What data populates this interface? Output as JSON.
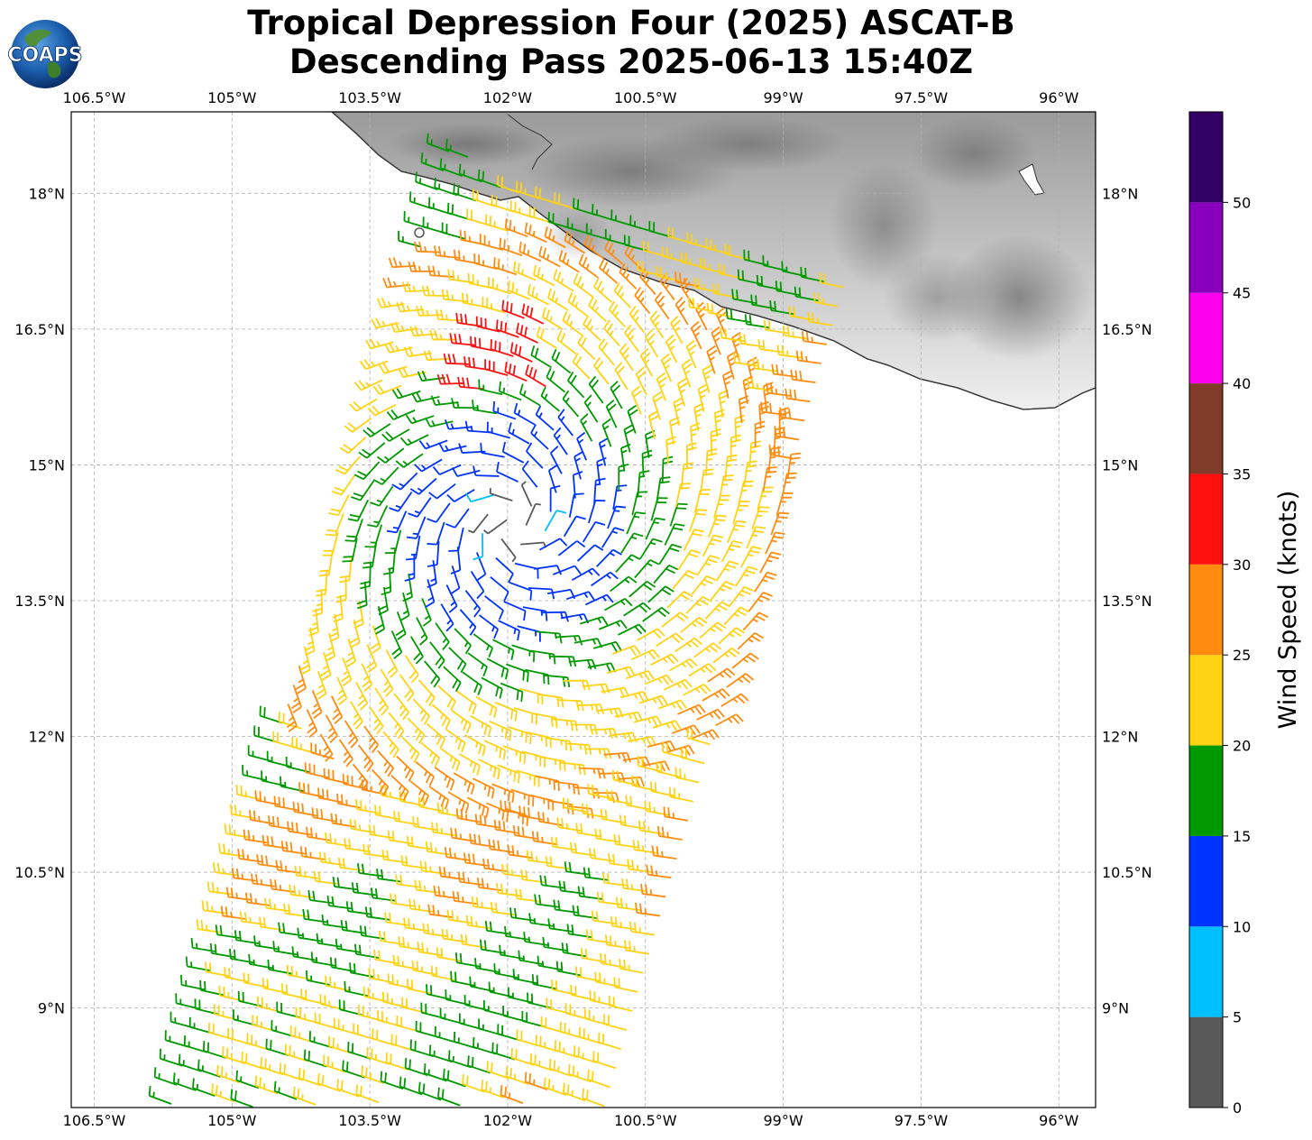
{
  "title": {
    "line1": "Tropical Depression Four (2025) ASCAT-B",
    "line2": "Descending Pass 2025-06-13 15:40Z"
  },
  "logo": {
    "text": "COAPS",
    "icon": "globe-logo-icon"
  },
  "map": {
    "lon_range": [
      -106.75,
      -95.6
    ],
    "lat_range": [
      7.9,
      18.9
    ],
    "lon_ticks": [
      "106.5°W",
      "105°W",
      "103.5°W",
      "102°W",
      "100.5°W",
      "99°W",
      "97.5°W",
      "96°W"
    ],
    "lat_ticks": [
      "18°N",
      "16.5°N",
      "15°N",
      "13.5°N",
      "12°N",
      "10.5°N",
      "9°N"
    ],
    "storm_center": {
      "lon": -101.95,
      "lat": 14.35
    },
    "swath": {
      "direction": "descending",
      "colors_by_speed": true
    }
  },
  "colorbar": {
    "label": "Wind Speed (knots)",
    "ticks": [
      "0",
      "5",
      "10",
      "15",
      "20",
      "25",
      "30",
      "35",
      "40",
      "45",
      "50"
    ],
    "bins": [
      {
        "min": 0,
        "max": 5,
        "color": "#595959"
      },
      {
        "min": 5,
        "max": 10,
        "color": "#00bfff"
      },
      {
        "min": 10,
        "max": 15,
        "color": "#0033ff"
      },
      {
        "min": 15,
        "max": 20,
        "color": "#009900"
      },
      {
        "min": 20,
        "max": 25,
        "color": "#ffd314"
      },
      {
        "min": 25,
        "max": 30,
        "color": "#ff8c0f"
      },
      {
        "min": 30,
        "max": 35,
        "color": "#ff1010"
      },
      {
        "min": 35,
        "max": 40,
        "color": "#803c28"
      },
      {
        "min": 40,
        "max": 45,
        "color": "#ff00ee"
      },
      {
        "min": 45,
        "max": 50,
        "color": "#8800bb"
      },
      {
        "min": 50,
        "max": 55,
        "color": "#330066"
      }
    ]
  }
}
